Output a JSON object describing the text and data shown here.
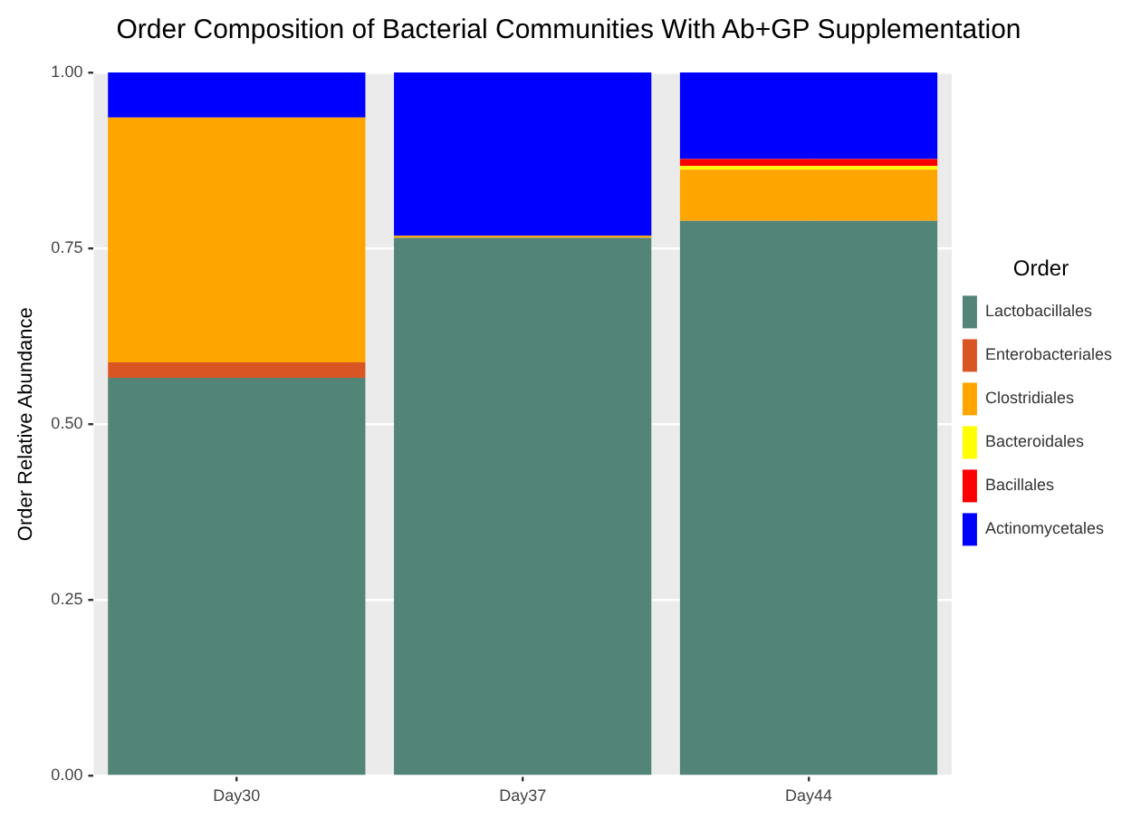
{
  "chart_data": {
    "type": "bar",
    "title": "Order Composition of Bacterial Communities With Ab+GP Supplementation",
    "ylabel": "Order Relative Abundance",
    "legend_title": "Order",
    "categories": [
      "Day30",
      "Day37",
      "Day44"
    ],
    "stacked": true,
    "series": [
      {
        "name": "Lactobacillales",
        "color": "#528577",
        "values": [
          0.566,
          0.765,
          0.789
        ]
      },
      {
        "name": "Enterobacteriales",
        "color": "#d95624",
        "values": [
          0.022,
          0,
          0
        ]
      },
      {
        "name": "Clostridiales",
        "color": "#ffa500",
        "values": [
          0.348,
          0.003,
          0.073
        ]
      },
      {
        "name": "Bacteroidales",
        "color": "#ffff00",
        "values": [
          0,
          0,
          0.005
        ]
      },
      {
        "name": "Bacillales",
        "color": "#ff0000",
        "values": [
          0,
          0,
          0.01
        ]
      },
      {
        "name": "Actinomycetales",
        "color": "#0000ff",
        "values": [
          0.064,
          0.232,
          0.123
        ]
      }
    ],
    "ylim": [
      0,
      1
    ],
    "yticks": [
      {
        "value": 0,
        "label": "0.00"
      },
      {
        "value": 0.25,
        "label": "0.25"
      },
      {
        "value": 0.5,
        "label": "0.50"
      },
      {
        "value": 0.75,
        "label": "0.75"
      },
      {
        "value": 1,
        "label": "1.00"
      }
    ],
    "grid": true,
    "legend": "right"
  }
}
